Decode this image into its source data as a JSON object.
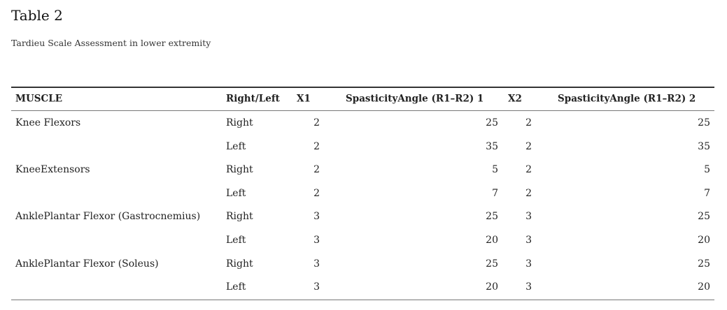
{
  "title": "Table 2",
  "subtitle": "Tardieu Scale Assessment in lower extremity",
  "table": {
    "header": [
      "MUSCLE",
      "Right/Left",
      "X1",
      "SpasticityAngle (R1–R2) 1",
      "X2",
      "SpasticityAngle (R1–R2) 2"
    ],
    "rows": [
      [
        "Knee Flexors",
        "Right",
        2,
        25,
        2,
        25
      ],
      [
        null,
        "Left",
        2,
        35,
        2,
        35
      ],
      [
        "KneeExtensors",
        "Right",
        2,
        5,
        2,
        5
      ],
      [
        null,
        "Left",
        2,
        7,
        2,
        7
      ],
      [
        "AnklePlantar Flexor (Gastrocnemius)",
        "Right",
        3,
        25,
        3,
        25
      ],
      [
        null,
        "Left",
        3,
        20,
        3,
        20
      ],
      [
        "AnklePlantar Flexor (Soleus)",
        "Right",
        3,
        25,
        3,
        25
      ],
      [
        null,
        "Left",
        3,
        20,
        3,
        20
      ]
    ]
  }
}
